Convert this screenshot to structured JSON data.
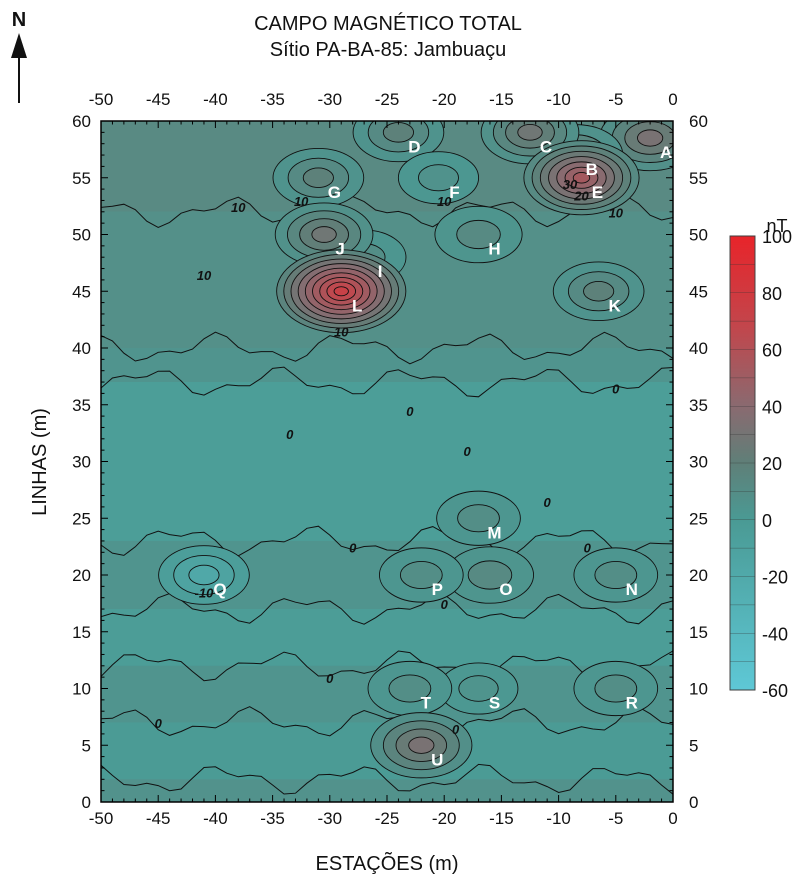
{
  "chart_data": {
    "type": "heatmap",
    "title": "CAMPO MAGNÉTICO TOTAL",
    "subtitle": "Sítio PA-BA-85: Jambuaçu",
    "xlabel": "ESTAÇÕES (m)",
    "ylabel": "LINHAS (m)",
    "north_label": "N",
    "xlim": [
      -50,
      0
    ],
    "ylim": [
      0,
      60
    ],
    "x_ticks": [
      "-50",
      "-45",
      "-40",
      "-35",
      "-30",
      "-25",
      "-20",
      "-15",
      "-10",
      "-5",
      "0"
    ],
    "y_ticks": [
      "0",
      "5",
      "10",
      "15",
      "20",
      "25",
      "30",
      "35",
      "40",
      "45",
      "50",
      "55",
      "60"
    ],
    "colorbar": {
      "unit": "nT",
      "range": [
        -60,
        100
      ],
      "ticks": [
        "100",
        "80",
        "60",
        "40",
        "20",
        "0",
        "-20",
        "-40",
        "-60"
      ],
      "low_color": "#5ec8d6",
      "mid_color": "#4a9a94",
      "high_color": "#e8242a"
    },
    "background_value": 5,
    "anomalies": [
      {
        "label": "A",
        "x": -2,
        "y": 58.5,
        "value": 40
      },
      {
        "label": "B",
        "x": -8.5,
        "y": 57,
        "value": 30
      },
      {
        "label": "C",
        "x": -12.5,
        "y": 59,
        "value": 35
      },
      {
        "label": "D",
        "x": -24,
        "y": 59,
        "value": 25
      },
      {
        "label": "E",
        "x": -8,
        "y": 55,
        "value": 60
      },
      {
        "label": "F",
        "x": -20.5,
        "y": 55,
        "value": 10
      },
      {
        "label": "G",
        "x": -31,
        "y": 55,
        "value": 25
      },
      {
        "label": "H",
        "x": -17,
        "y": 50,
        "value": 20
      },
      {
        "label": "I",
        "x": -27,
        "y": 48,
        "value": 15
      },
      {
        "label": "J",
        "x": -30.5,
        "y": 50,
        "value": 35
      },
      {
        "label": "K",
        "x": -6.5,
        "y": 45,
        "value": 25
      },
      {
        "label": "L",
        "x": -29,
        "y": 45,
        "value": 80
      },
      {
        "label": "M",
        "x": -17,
        "y": 25,
        "value": 15
      },
      {
        "label": "N",
        "x": -5,
        "y": 20,
        "value": 15
      },
      {
        "label": "O",
        "x": -16,
        "y": 20,
        "value": 20
      },
      {
        "label": "P",
        "x": -22,
        "y": 20,
        "value": 15
      },
      {
        "label": "Q",
        "x": -41,
        "y": 20,
        "value": -25
      },
      {
        "label": "R",
        "x": -5,
        "y": 10,
        "value": 15
      },
      {
        "label": "S",
        "x": -17,
        "y": 10,
        "value": 8
      },
      {
        "label": "T",
        "x": -23,
        "y": 10,
        "value": 15
      },
      {
        "label": "U",
        "x": -22,
        "y": 5,
        "value": 40
      }
    ],
    "contour_labels": [
      {
        "text": "10",
        "x": -38,
        "y": 52
      },
      {
        "text": "10",
        "x": -32.5,
        "y": 52.5
      },
      {
        "text": "10",
        "x": -20,
        "y": 52.5
      },
      {
        "text": "10",
        "x": -5,
        "y": 51.5
      },
      {
        "text": "30",
        "x": -9,
        "y": 54
      },
      {
        "text": "20",
        "x": -8,
        "y": 53
      },
      {
        "text": "10",
        "x": -41,
        "y": 46
      },
      {
        "text": "10",
        "x": -29,
        "y": 41
      },
      {
        "text": "0",
        "x": -23,
        "y": 34
      },
      {
        "text": "0",
        "x": -33.5,
        "y": 32
      },
      {
        "text": "0",
        "x": -18,
        "y": 30.5
      },
      {
        "text": "0",
        "x": -5,
        "y": 36
      },
      {
        "text": "0",
        "x": -11,
        "y": 26
      },
      {
        "text": "0",
        "x": -28,
        "y": 22
      },
      {
        "text": "0",
        "x": -7.5,
        "y": 22
      },
      {
        "text": "-10",
        "x": -41,
        "y": 18
      },
      {
        "text": "0",
        "x": -20,
        "y": 17
      },
      {
        "text": "0",
        "x": -30,
        "y": 10.5
      },
      {
        "text": "0",
        "x": -45,
        "y": 6.5
      },
      {
        "text": "0",
        "x": -19,
        "y": 6
      }
    ]
  }
}
